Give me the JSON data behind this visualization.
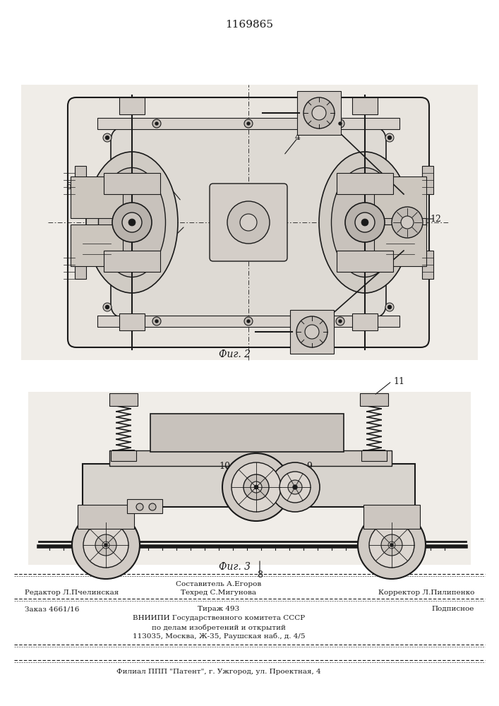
{
  "patent_number": "1169865",
  "fig2_label": "Фиг. 2",
  "fig3_label": "Фиг. 3",
  "footer_sestavitel": "Составитель А.Егоров",
  "footer_redaktor": "Редактор Л.Пчелинская",
  "footer_tehred": "Техред С.Мигунова",
  "footer_korrektor": "Корректор Л.Пилипенко",
  "footer_zakaz": "Заказ 4661/16",
  "footer_tirazh": "Тираж 493",
  "footer_podpisnoe": "Подписное",
  "footer_vniipki": "ВНИИПИ Государственного комитета СССР",
  "footer_dela": "по делам изобретений и открытий",
  "footer_addr": "113035, Москва, Ж-35, Раушская наб., д. 4/5",
  "footer_filial": "Филиал ППП \"Патент\", г. Ужгород, ул. Проектная, 4",
  "bg_color": "#ffffff",
  "lc": "#1a1a1a",
  "gray_light": "#e8e4de",
  "gray_mid": "#c8c0b4",
  "gray_dark": "#a09890"
}
